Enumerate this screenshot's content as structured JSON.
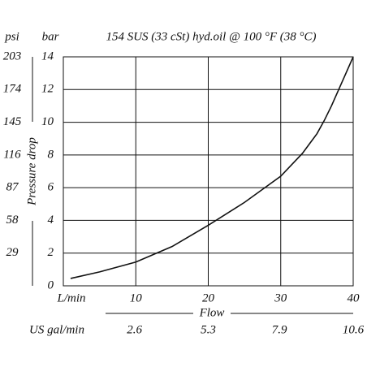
{
  "chart_data": {
    "type": "line",
    "title": "154 SUS (33 cSt) hyd.oil @ 100  °F (38 °C)",
    "y_label": "Pressure drop",
    "y_unit": "bar",
    "y2_unit": "psi",
    "x_label": "Flow",
    "x_unit": "L/min",
    "x2_unit": "US gal/min",
    "x": [
      1,
      5,
      10,
      15,
      20,
      25,
      30,
      33,
      35,
      36,
      37,
      38,
      39,
      40
    ],
    "series": [
      {
        "name": "Pressure drop",
        "color": "#111111",
        "values": [
          0.45,
          0.85,
          1.45,
          2.4,
          3.7,
          5.1,
          6.7,
          8.1,
          9.3,
          10.1,
          11.0,
          12.0,
          13.0,
          14.0
        ]
      }
    ],
    "xlim": [
      0,
      40
    ],
    "xticks": [
      10,
      20,
      30,
      40
    ],
    "x2lim": [
      0,
      10.6
    ],
    "x2ticks": [
      2.6,
      5.3,
      7.9,
      10.6
    ],
    "ylim": [
      0,
      14
    ],
    "yticks": [
      0,
      2,
      4,
      6,
      8,
      10,
      12,
      14
    ],
    "y2lim": [
      0,
      203
    ],
    "y2ticks": [
      29,
      58,
      87,
      116,
      145,
      174,
      203
    ],
    "grid": true
  }
}
